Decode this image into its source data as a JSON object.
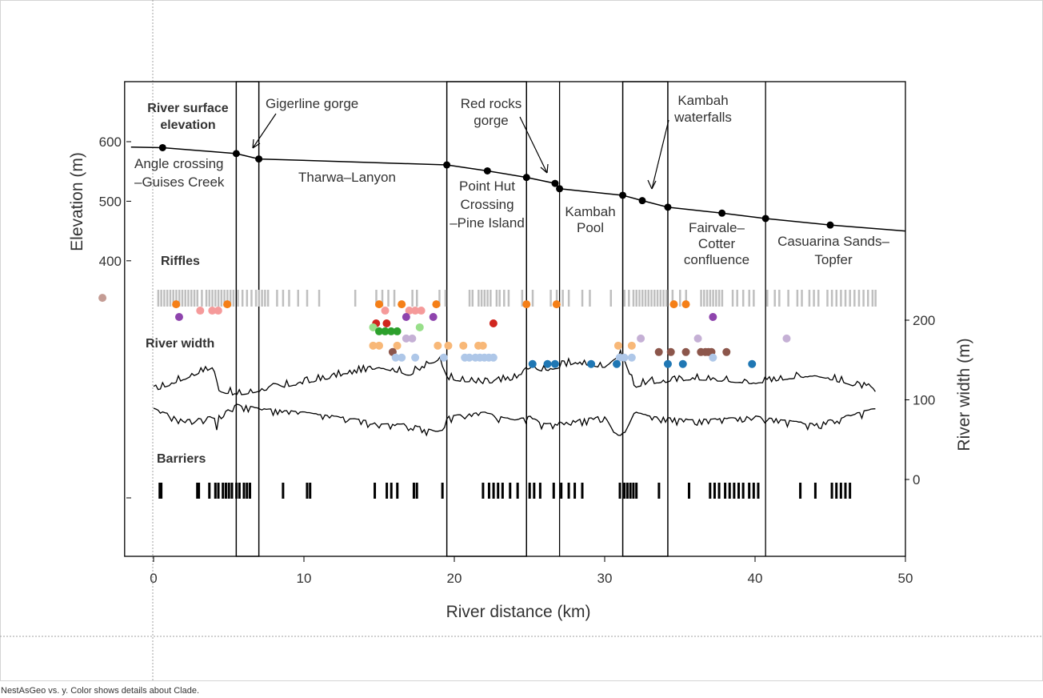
{
  "caption": "NestAsGeo vs. y.  Color shows details about Clade.",
  "colors": {
    "orange": "#f57f17",
    "pink": "#f59a9a",
    "purple": "#8e44ad",
    "red": "#d0261f",
    "green": "#2ca02c",
    "light_green": "#98df8a",
    "peach": "#f8b878",
    "brown": "#8c564b",
    "light_blue": "#aec7e8",
    "blue": "#1f77b4",
    "lavender": "#c5b0d5",
    "rosy": "#c49c94",
    "riffle": "#bfbfbf",
    "barrier": "#000000"
  },
  "chart_data": {
    "type": "scatter",
    "xlabel": "River distance (km)",
    "ylabel": "Elevation (m)",
    "y2label": "River width (m)",
    "xlim": [
      -1.5,
      50
    ],
    "xticks": [
      0,
      10,
      20,
      30,
      40,
      50
    ],
    "yticks": [
      400,
      500,
      600
    ],
    "y2ticks": [
      0,
      100,
      200
    ],
    "section_labels": {
      "surface": "River surface elevation",
      "riffles": "Riffles",
      "width": "River width",
      "barriers": "Barriers"
    },
    "annotations": {
      "gigerline": "Gigerline gorge",
      "redrocks": "Red rocks gorge",
      "kambah_falls": "Kambah waterfalls"
    },
    "reaches": [
      {
        "name": "Angle crossing –Guises Creek"
      },
      {
        "name": "Tharwa–Lanyon"
      },
      {
        "name": "Point Hut Crossing –Pine Island"
      },
      {
        "name": "Kambah Pool"
      },
      {
        "name": "Fairvale– Cotter confluence"
      },
      {
        "name": "Casuarina Sands– Topfer"
      }
    ],
    "reach_boundaries_km": [
      5.5,
      7.0,
      19.5,
      24.8,
      27.0,
      31.2,
      34.2,
      40.7
    ],
    "boxes_km": [
      [
        -1.5,
        50
      ],
      [
        5.5,
        7.0
      ],
      [
        19.5,
        24.8
      ],
      [
        31.2,
        34.2
      ]
    ],
    "elevation_profile": {
      "x": [
        -1.5,
        0.6,
        5.5,
        7.0,
        19.5,
        22.2,
        24.8,
        26.7,
        27.0,
        31.2,
        32.5,
        34.2,
        37.8,
        40.7,
        45.0,
        50.0
      ],
      "y": [
        591,
        590,
        580,
        571,
        561,
        551,
        540,
        530,
        521,
        510,
        501,
        490,
        480,
        471,
        460,
        450
      ]
    },
    "elevation_points": {
      "x": [
        0.6,
        5.5,
        7.0,
        19.5,
        22.2,
        24.8,
        26.7,
        27.0,
        31.2,
        32.5,
        34.2,
        37.8,
        40.7,
        45.0
      ],
      "y": [
        590,
        580,
        571,
        561,
        551,
        540,
        530,
        521,
        510,
        501,
        490,
        480,
        471,
        460
      ]
    },
    "riffles_km": [
      0.3,
      0.5,
      0.7,
      0.9,
      1.1,
      1.3,
      1.5,
      1.7,
      1.9,
      2.1,
      2.3,
      2.5,
      2.7,
      2.9,
      3.2,
      3.5,
      3.7,
      3.9,
      4.1,
      4.3,
      4.5,
      4.7,
      4.9,
      5.1,
      5.3,
      5.6,
      5.9,
      6.2,
      6.5,
      6.8,
      7.0,
      7.2,
      7.4,
      7.6,
      8.2,
      8.6,
      9.0,
      9.6,
      10.2,
      11.0,
      13.4,
      14.8,
      15.2,
      15.6,
      16.0,
      17.2,
      17.5,
      19.0,
      19.4,
      21.0,
      21.2,
      21.6,
      21.8,
      22.0,
      22.2,
      22.4,
      22.8,
      23.0,
      23.3,
      23.6,
      24.5,
      25.2,
      26.4,
      26.8,
      27.2,
      27.6,
      28.5,
      29.0,
      30.4,
      31.3,
      31.6,
      31.9,
      32.1,
      32.3,
      32.5,
      32.7,
      32.9,
      33.1,
      33.3,
      33.5,
      33.7,
      33.9,
      34.1,
      34.5,
      35.0,
      35.4,
      36.4,
      36.6,
      36.8,
      37.0,
      37.2,
      37.4,
      37.6,
      37.8,
      38.5,
      38.8,
      39.2,
      39.6,
      39.9,
      40.8,
      41.3,
      41.6,
      42.2,
      42.8,
      43.1,
      43.6,
      43.9,
      44.2,
      44.8,
      45.1,
      45.4,
      45.7,
      46.0,
      46.3,
      46.6,
      46.9,
      47.2,
      47.5,
      47.8,
      48.0
    ],
    "barriers_km": [
      0.4,
      0.5,
      2.9,
      3.0,
      3.7,
      4.1,
      4.3,
      4.6,
      4.8,
      5.0,
      5.2,
      5.5,
      5.7,
      6.0,
      6.2,
      6.4,
      8.6,
      10.2,
      10.4,
      14.7,
      15.5,
      15.8,
      16.2,
      17.3,
      17.5,
      19.2,
      21.9,
      22.3,
      22.6,
      22.9,
      23.2,
      23.7,
      24.2,
      25.0,
      25.3,
      25.7,
      26.6,
      27.1,
      27.6,
      28.0,
      28.5,
      31.0,
      31.3,
      31.5,
      31.7,
      31.9,
      32.1,
      33.6,
      35.6,
      37.0,
      37.3,
      37.6,
      38.0,
      38.3,
      38.6,
      38.9,
      39.2,
      39.6,
      39.9,
      40.2,
      43.0,
      44.0,
      45.1,
      45.4,
      45.7,
      46.0,
      46.3
    ],
    "width_band": {
      "x": [
        0,
        2,
        4,
        4.2,
        4.3,
        5.5,
        7,
        10,
        14,
        15,
        17,
        19,
        19.6,
        22,
        24,
        25,
        26,
        28,
        30,
        30.6,
        31,
        31.5,
        32,
        33,
        36,
        40,
        44,
        48
      ],
      "upper": [
        110,
        125,
        140,
        120,
        110,
        105,
        110,
        120,
        135,
        140,
        130,
        150,
        125,
        120,
        125,
        140,
        135,
        145,
        140,
        150,
        155,
        140,
        115,
        120,
        125,
        120,
        130,
        110
      ],
      "lower": [
        90,
        75,
        80,
        70,
        80,
        95,
        90,
        85,
        75,
        70,
        70,
        60,
        80,
        85,
        75,
        80,
        70,
        75,
        80,
        60,
        55,
        65,
        85,
        80,
        75,
        80,
        70,
        90
      ]
    },
    "legend_title": "Clade",
    "series": [
      {
        "color": "orange",
        "x": [
          1.5,
          4.9,
          15.0,
          16.5,
          18.8,
          24.8,
          26.8,
          34.6,
          35.4
        ],
        "y2": [
          220,
          220,
          220,
          220,
          220,
          220,
          220,
          220,
          220
        ]
      },
      {
        "color": "pink",
        "x": [
          3.1,
          3.9,
          4.3,
          15.4,
          17.0,
          17.4,
          17.8
        ],
        "y2": [
          212,
          212,
          212,
          212,
          212,
          212,
          212
        ]
      },
      {
        "color": "purple",
        "x": [
          1.7,
          16.8,
          18.6,
          37.2
        ],
        "y2": [
          204,
          204,
          204,
          204
        ]
      },
      {
        "color": "red",
        "x": [
          14.8,
          15.5,
          22.6
        ],
        "y2": [
          196,
          196,
          196
        ]
      },
      {
        "color": "light_green",
        "x": [
          14.6,
          17.7
        ],
        "y2": [
          191,
          191
        ]
      },
      {
        "color": "green",
        "x": [
          15.0,
          15.4,
          15.8,
          16.2
        ],
        "y2": [
          186,
          186,
          186,
          186
        ]
      },
      {
        "color": "lavender",
        "x": [
          16.8,
          17.2,
          32.4,
          36.2,
          42.1
        ],
        "y2": [
          177,
          177,
          177,
          177,
          177
        ]
      },
      {
        "color": "peach",
        "x": [
          14.6,
          15.0,
          16.2,
          18.9,
          19.6,
          20.6,
          21.6,
          21.9,
          30.9,
          31.8
        ],
        "y2": [
          168,
          168,
          168,
          168,
          168,
          168,
          168,
          168,
          168,
          168
        ]
      },
      {
        "color": "brown",
        "x": [
          15.9,
          33.6,
          34.4,
          35.4,
          36.4,
          36.7,
          36.9,
          37.1,
          38.1
        ],
        "y2": [
          160,
          160,
          160,
          160,
          160,
          160,
          160,
          160,
          160
        ]
      },
      {
        "color": "light_blue",
        "x": [
          16.1,
          16.5,
          17.4,
          19.3,
          20.7,
          21.0,
          21.4,
          21.7,
          22.0,
          22.3,
          22.6,
          31.0,
          31.3,
          31.8,
          37.2
        ],
        "y2": [
          153,
          153,
          153,
          153,
          153,
          153,
          153,
          153,
          153,
          153,
          153,
          153,
          153,
          153,
          153
        ]
      },
      {
        "color": "blue",
        "x": [
          25.2,
          26.2,
          26.7,
          29.1,
          30.8,
          34.2,
          35.2,
          39.8
        ],
        "y2": [
          145,
          145,
          145,
          145,
          145,
          145,
          145,
          145
        ]
      },
      {
        "color": "rosy",
        "x": [
          -3.4
        ],
        "y2": [
          228
        ]
      }
    ]
  }
}
